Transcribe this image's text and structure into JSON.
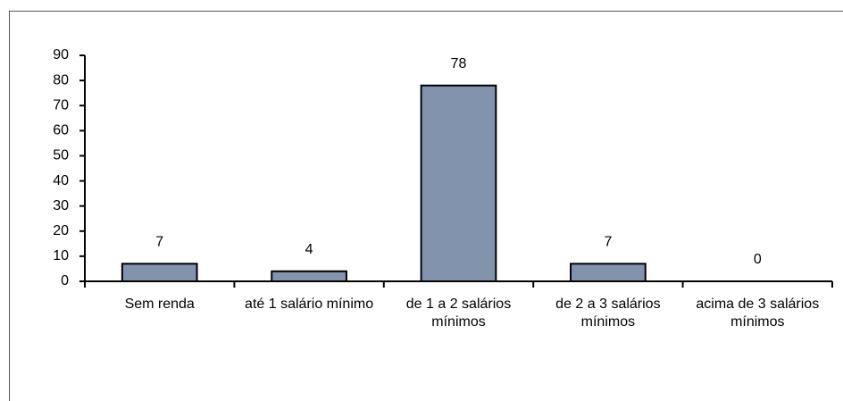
{
  "chart_data": {
    "type": "bar",
    "categories": [
      "Sem renda",
      "até 1 salário mínimo",
      "de 1 a 2 salários mínimos",
      "de 2 a 3 salários mínimos",
      "acima de 3 salários mínimos"
    ],
    "values": [
      7,
      4,
      78,
      7,
      0
    ],
    "color": "#8294ad",
    "ylim": [
      0,
      90
    ],
    "yticks": [
      0,
      10,
      20,
      30,
      40,
      50,
      60,
      70,
      80,
      90
    ]
  }
}
